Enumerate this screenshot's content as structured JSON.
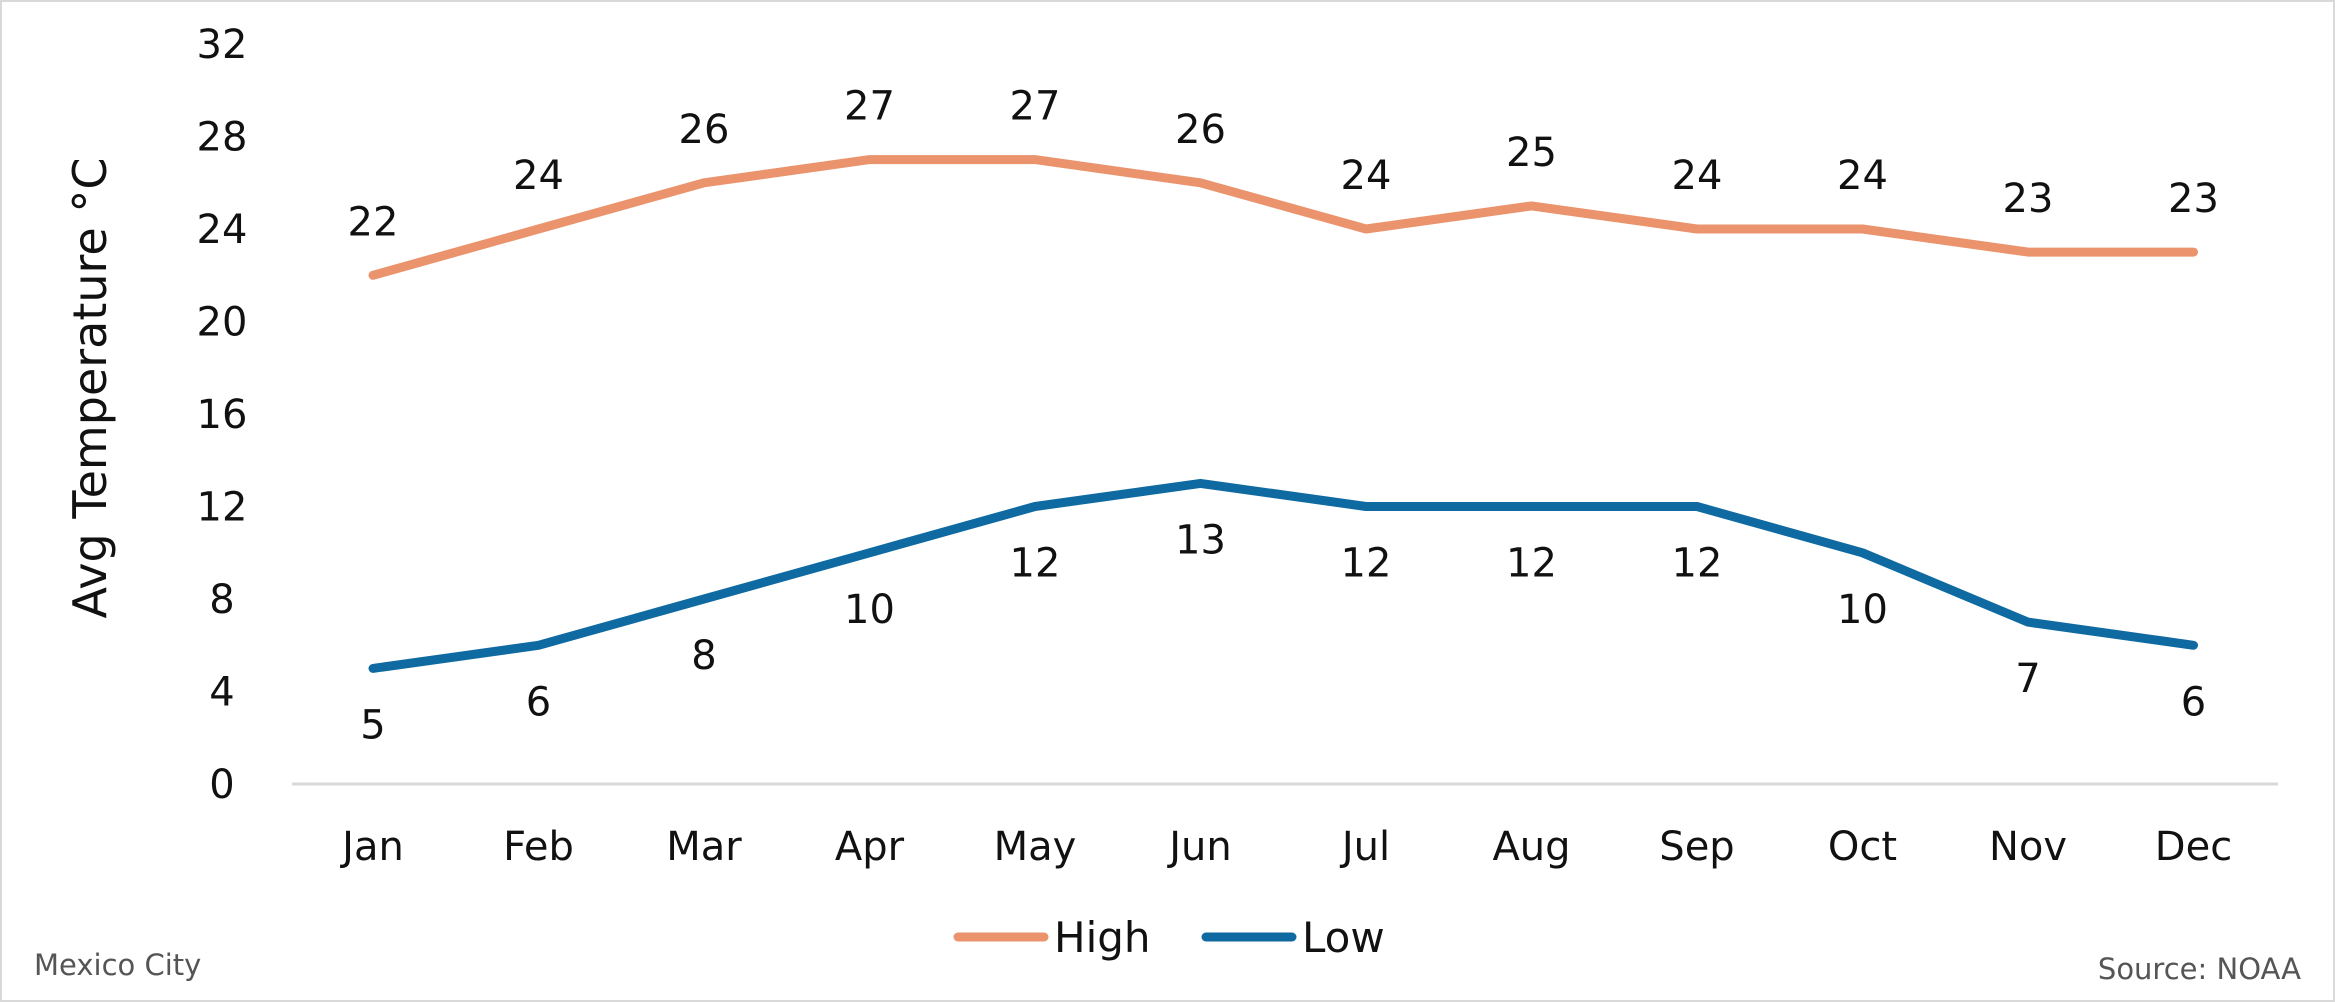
{
  "chart_data": {
    "type": "line",
    "categories": [
      "Jan",
      "Feb",
      "Mar",
      "Apr",
      "May",
      "Jun",
      "Jul",
      "Aug",
      "Sep",
      "Oct",
      "Nov",
      "Dec"
    ],
    "series": [
      {
        "name": "High",
        "values": [
          22,
          24,
          26,
          27,
          27,
          26,
          24,
          25,
          24,
          24,
          23,
          23
        ],
        "color": "#ea936c"
      },
      {
        "name": "Low",
        "values": [
          5,
          6,
          8,
          10,
          12,
          13,
          12,
          12,
          12,
          10,
          7,
          6
        ],
        "color": "#0e6aa0"
      }
    ],
    "ylabel": "Avg Temperature °C",
    "xlabel": "",
    "ylim": [
      0,
      32
    ],
    "yticks": [
      0,
      4,
      8,
      12,
      16,
      20,
      24,
      28,
      32
    ],
    "grid": false,
    "legend_position": "bottom-center",
    "data_labels": true
  },
  "footer": {
    "left_text": "Mexico City",
    "right_text": "Source: NOAA"
  }
}
